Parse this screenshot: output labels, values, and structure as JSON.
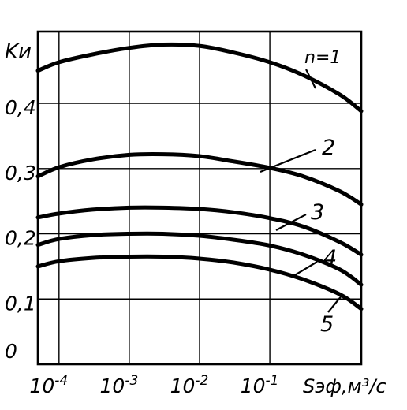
{
  "chart_data": {
    "type": "line",
    "title": "",
    "xlabel": "Sэф,м³/с",
    "ylabel": "Kи",
    "xscale": "log",
    "xlim": [
      5e-05,
      2
    ],
    "ylim": [
      0,
      0.51
    ],
    "x_ticks": [
      {
        "value": 0.0001,
        "base": "10",
        "exp": "-4"
      },
      {
        "value": 0.001,
        "base": "10",
        "exp": "-3"
      },
      {
        "value": 0.01,
        "base": "10",
        "exp": "-2"
      },
      {
        "value": 0.1,
        "base": "10",
        "exp": "-1"
      }
    ],
    "y_ticks": [
      {
        "value": 0,
        "label": "0"
      },
      {
        "value": 0.1,
        "label": "0,1"
      },
      {
        "value": 0.2,
        "label": "0,2"
      },
      {
        "value": 0.3,
        "label": "0,3"
      },
      {
        "value": 0.4,
        "label": "0,4"
      }
    ],
    "grid": true,
    "line_color": "#000000",
    "series": [
      {
        "name": "n=1",
        "x": [
          5e-05,
          0.0001,
          0.0003,
          0.001,
          0.003,
          0.01,
          0.03,
          0.1,
          0.3,
          1,
          2
        ],
        "y": [
          0.45,
          0.463,
          0.475,
          0.485,
          0.49,
          0.488,
          0.478,
          0.463,
          0.443,
          0.413,
          0.388
        ]
      },
      {
        "name": "2",
        "x": [
          5e-05,
          0.0001,
          0.0003,
          0.001,
          0.003,
          0.01,
          0.03,
          0.1,
          0.3,
          1,
          2
        ],
        "y": [
          0.288,
          0.302,
          0.314,
          0.321,
          0.322,
          0.319,
          0.311,
          0.301,
          0.288,
          0.265,
          0.245
        ]
      },
      {
        "name": "3",
        "x": [
          5e-05,
          0.0001,
          0.0003,
          0.001,
          0.003,
          0.01,
          0.03,
          0.1,
          0.3,
          1,
          2
        ],
        "y": [
          0.225,
          0.231,
          0.237,
          0.24,
          0.24,
          0.238,
          0.233,
          0.224,
          0.211,
          0.187,
          0.168
        ]
      },
      {
        "name": "4",
        "x": [
          5e-05,
          0.0001,
          0.0003,
          0.001,
          0.003,
          0.01,
          0.03,
          0.1,
          0.3,
          1,
          2
        ],
        "y": [
          0.183,
          0.192,
          0.198,
          0.2,
          0.2,
          0.197,
          0.191,
          0.182,
          0.168,
          0.145,
          0.122
        ]
      },
      {
        "name": "5",
        "x": [
          5e-05,
          0.0001,
          0.0003,
          0.001,
          0.003,
          0.01,
          0.03,
          0.1,
          0.3,
          1,
          2
        ],
        "y": [
          0.15,
          0.158,
          0.163,
          0.165,
          0.165,
          0.162,
          0.156,
          0.145,
          0.13,
          0.107,
          0.085
        ]
      }
    ]
  }
}
